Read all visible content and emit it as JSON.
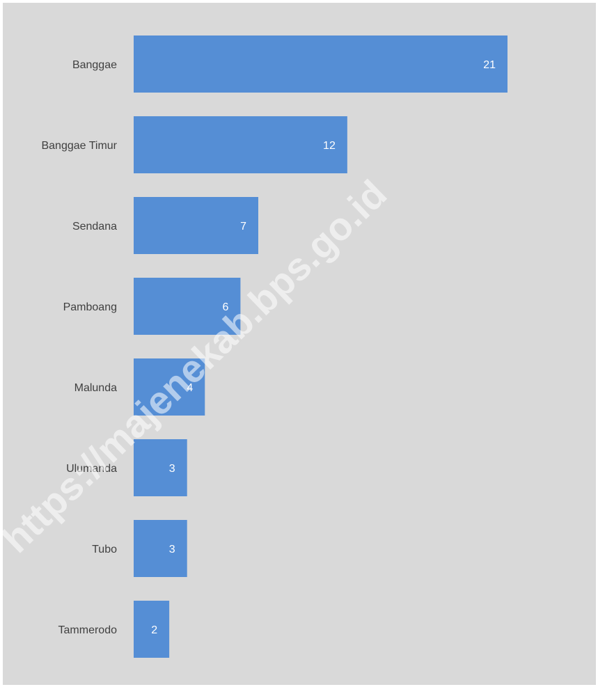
{
  "chart_data": {
    "type": "bar",
    "orientation": "horizontal",
    "categories": [
      "Banggae",
      "Banggae Timur",
      "Sendana",
      "Pamboang",
      "Malunda",
      "Ulumanda",
      "Tubo",
      "Tammerodo"
    ],
    "values": [
      21,
      12,
      7,
      6,
      4,
      3,
      3,
      2
    ],
    "xlim": [
      0,
      21
    ],
    "bar_color": "#558ed5",
    "background": "#d9d9d9",
    "grid": false,
    "data_labels": true
  },
  "watermark": "https://majenekab.bps.go.id"
}
